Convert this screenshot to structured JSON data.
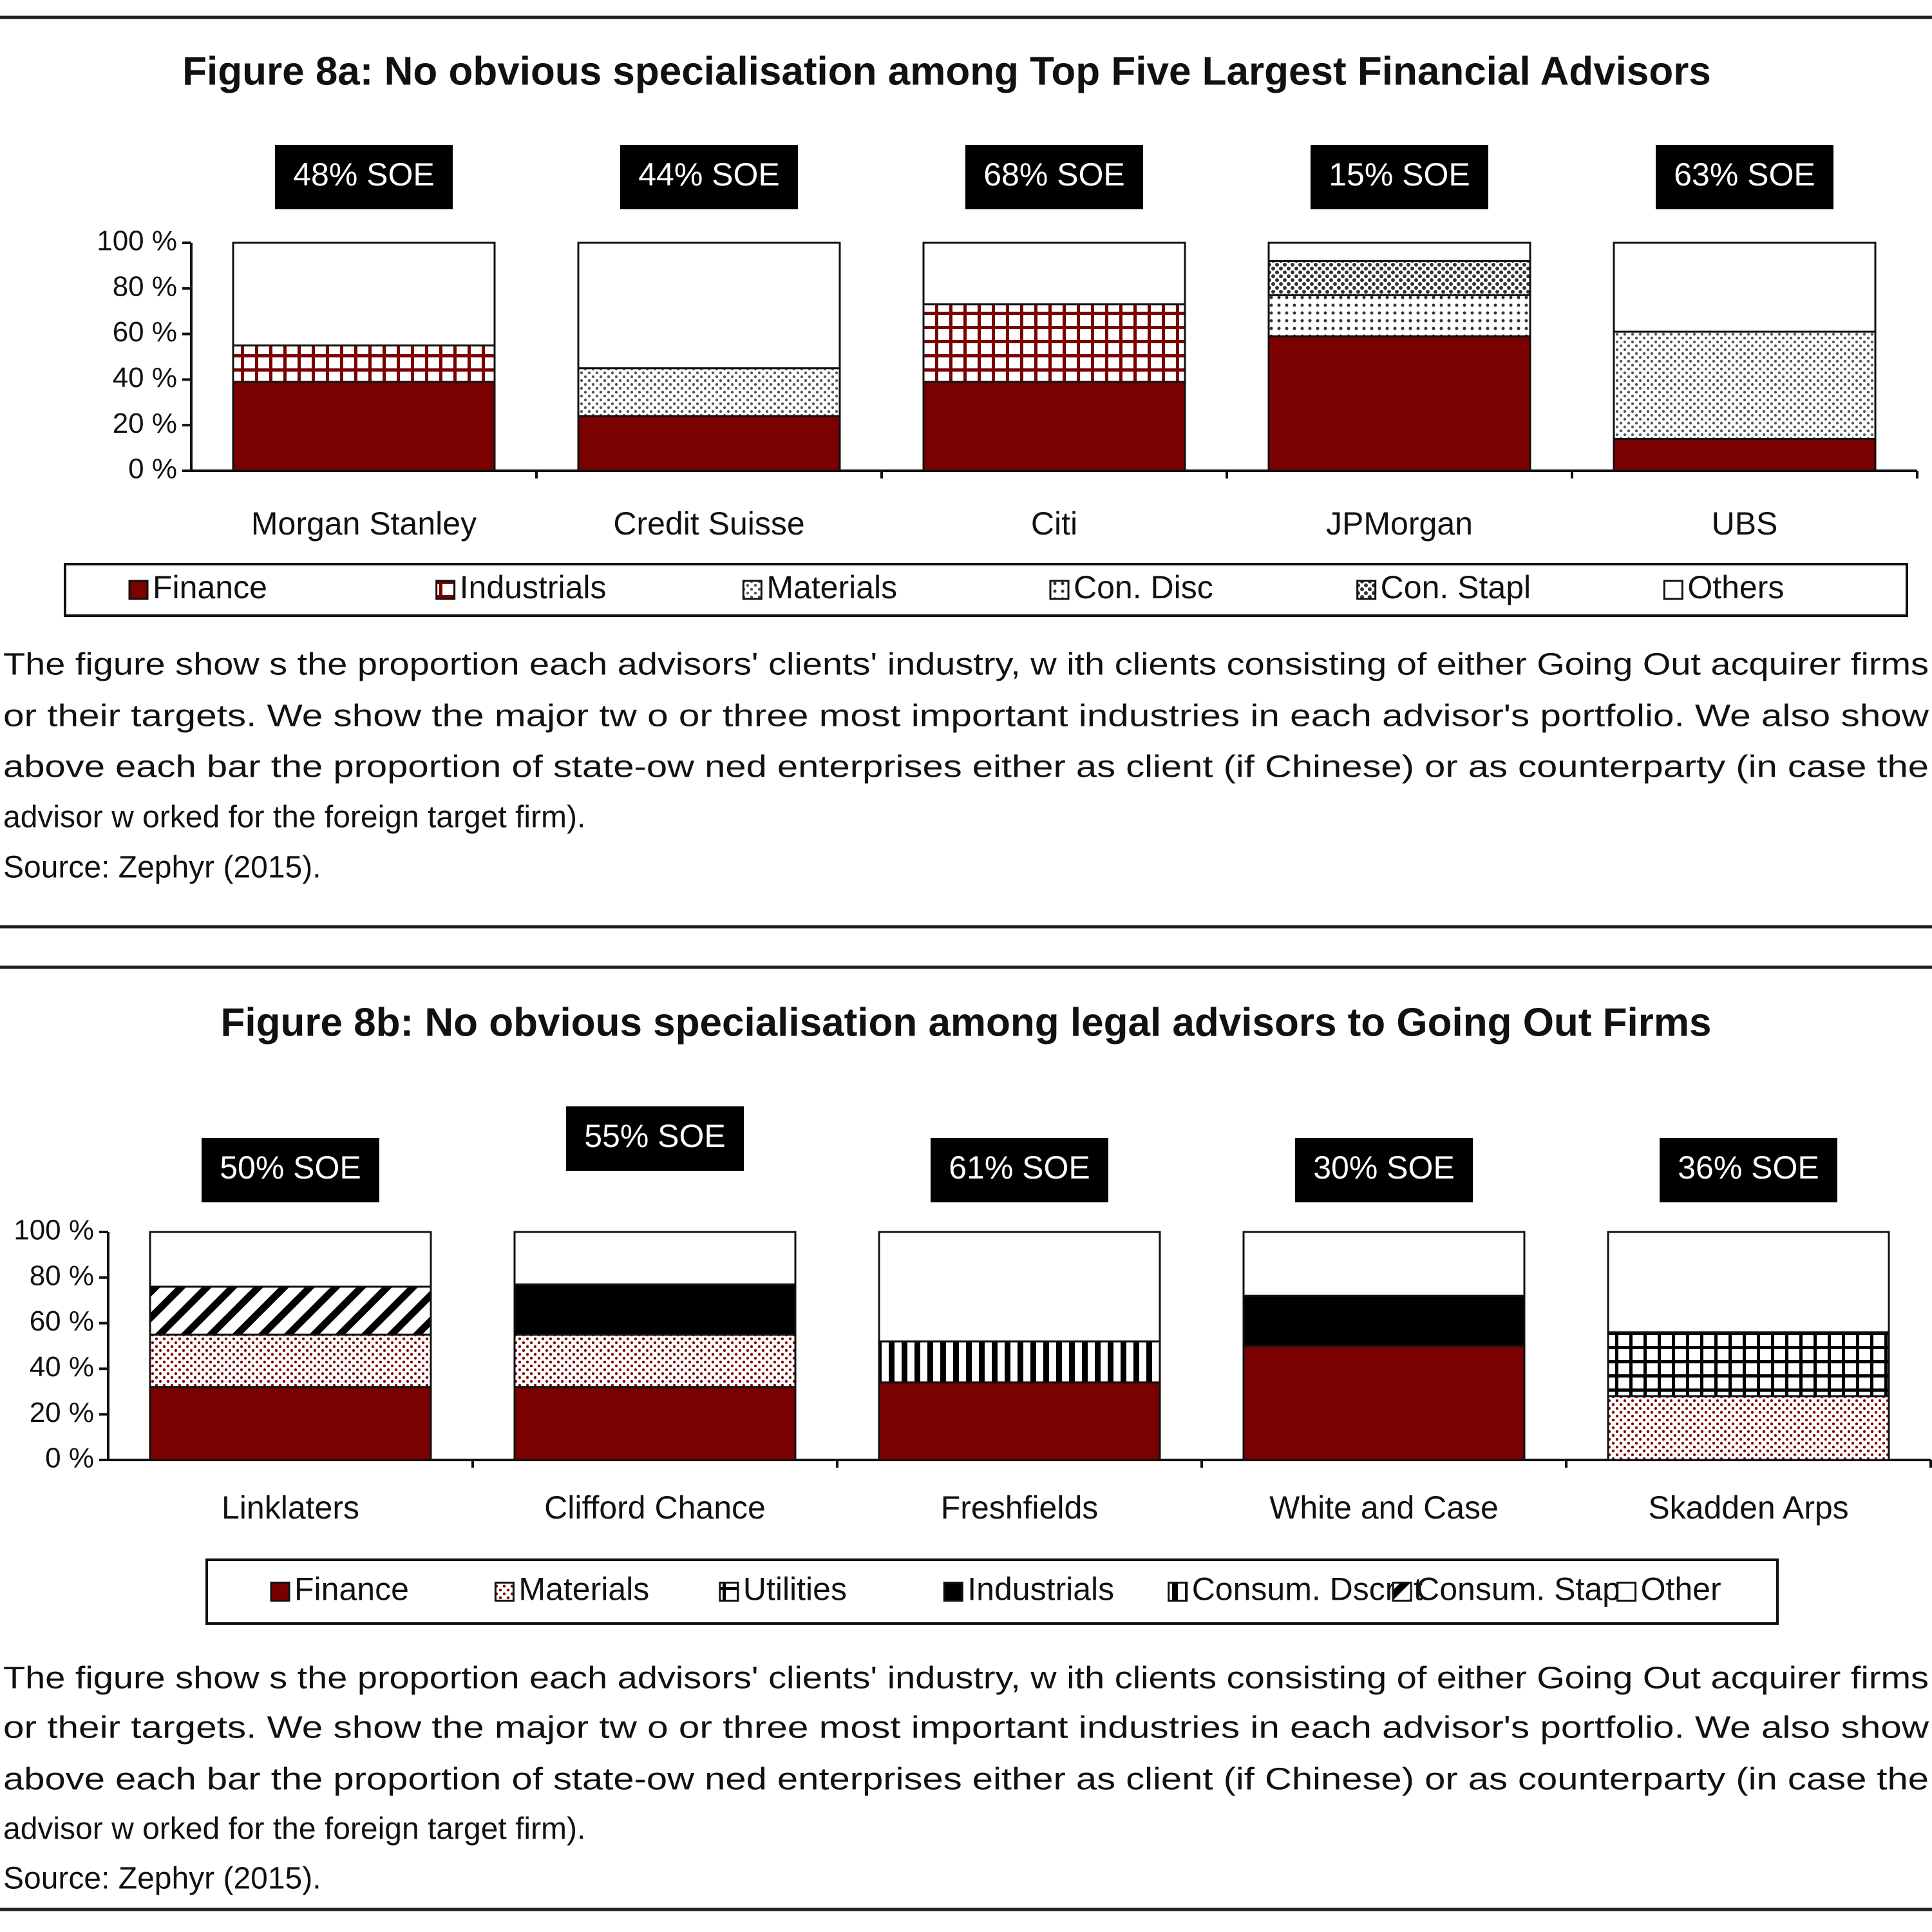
{
  "chart_data": [
    {
      "type": "stacked-bar",
      "title": "Figure 8a: No obvious specialisation among Top Five Largest Financial Advisors",
      "categories": [
        "Morgan Stanley",
        "Credit Suisse",
        "Citi",
        "JPMorgan",
        "UBS"
      ],
      "annotations": [
        "48% SOE",
        "44% SOE",
        "68% SOE",
        "15% SOE",
        "63% SOE"
      ],
      "series": [
        {
          "name": "Finance",
          "color": "#7b0000",
          "pattern": "solid",
          "values": [
            39,
            24,
            39,
            59,
            14
          ]
        },
        {
          "name": "Industrials",
          "color": "#7b0000",
          "pattern": "grid",
          "values": [
            16,
            0,
            34,
            0,
            0
          ]
        },
        {
          "name": "Materials",
          "color": "#555555",
          "pattern": "fine-dots",
          "values": [
            0,
            21,
            0,
            0,
            47
          ]
        },
        {
          "name": "Con. Disc",
          "color": "#333333",
          "pattern": "sparse-dots",
          "values": [
            0,
            0,
            0,
            18,
            0
          ]
        },
        {
          "name": "Con. Stapl",
          "color": "#333333",
          "pattern": "dots",
          "values": [
            0,
            0,
            0,
            15,
            0
          ]
        },
        {
          "name": "Others",
          "color": "#ffffff",
          "pattern": "solid",
          "values": [
            45,
            55,
            27,
            8,
            39
          ]
        }
      ],
      "ylim": [
        0,
        100
      ],
      "yticks": [
        {
          "value": 0,
          "label": "0 %"
        },
        {
          "value": 20,
          "label": "20 %"
        },
        {
          "value": 40,
          "label": "40 %"
        },
        {
          "value": 60,
          "label": "60 %"
        },
        {
          "value": 80,
          "label": "80 %"
        },
        {
          "value": 100,
          "label": "100 %"
        }
      ],
      "note_lines": [
        "The figure show s the proportion each advisors' clients' industry, w ith clients consisting of either Going Out acquirer firms",
        "or their targets. We show the major tw o or three most important industries in each advisor's portfolio. We also show",
        "above each bar the proportion of state-ow ned enterprises either as client (if Chinese) or as counterparty (in case the",
        "advisor w orked for the foreign target firm)."
      ],
      "source": "Source: Zephyr (2015)."
    },
    {
      "type": "stacked-bar",
      "title": "Figure 8b: No obvious specialisation among legal advisors to Going Out Firms",
      "categories": [
        "Linklaters",
        "Clifford Chance",
        "Freshfields",
        "White and Case",
        "Skadden Arps"
      ],
      "annotations": [
        "50% SOE",
        "55% SOE",
        "61% SOE",
        "30% SOE",
        "36% SOE"
      ],
      "series": [
        {
          "name": "Finance",
          "color": "#7b0000",
          "pattern": "solid",
          "values": [
            32,
            32,
            34,
            50,
            0
          ]
        },
        {
          "name": "Materials",
          "color": "#7b0000",
          "pattern": "fine-dots",
          "values": [
            23,
            23,
            0,
            0,
            28
          ]
        },
        {
          "name": "Utilities",
          "color": "#000000",
          "pattern": "grid",
          "values": [
            0,
            0,
            0,
            0,
            28
          ]
        },
        {
          "name": "Industrials",
          "color": "#000000",
          "pattern": "solid",
          "values": [
            0,
            22,
            0,
            22,
            0
          ]
        },
        {
          "name": "Consum. Dscret",
          "color": "#000000",
          "pattern": "vertical",
          "values": [
            0,
            0,
            18,
            0,
            0
          ]
        },
        {
          "name": "Consum. Stap",
          "color": "#000000",
          "pattern": "diagonal",
          "values": [
            21,
            0,
            0,
            0,
            0
          ]
        },
        {
          "name": "Other",
          "color": "#ffffff",
          "pattern": "solid",
          "values": [
            24,
            23,
            48,
            28,
            44
          ]
        }
      ],
      "ylim": [
        0,
        100
      ],
      "yticks": [
        {
          "value": 0,
          "label": "0 %"
        },
        {
          "value": 20,
          "label": "20 %"
        },
        {
          "value": 40,
          "label": "40 %"
        },
        {
          "value": 60,
          "label": "60 %"
        },
        {
          "value": 80,
          "label": "80 %"
        },
        {
          "value": 100,
          "label": "100 %"
        }
      ],
      "note_lines": [
        "The figure show s the proportion each advisors' clients' industry, w ith clients consisting of either Going Out acquirer firms",
        "or their targets. We show the major tw o or three most important industries in each advisor's portfolio. We also show",
        "above each bar the proportion of state-ow ned enterprises either as client (if Chinese) or as counterparty (in case the",
        "advisor w orked for the foreign target firm)."
      ],
      "source": "Source: Zephyr (2015)."
    }
  ]
}
